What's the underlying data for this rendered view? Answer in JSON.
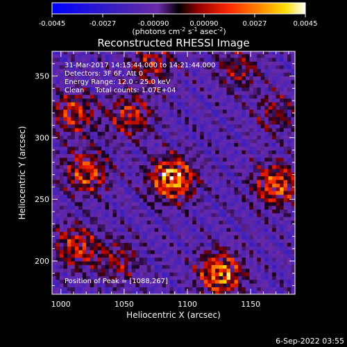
{
  "chart_data": {
    "type": "heatmap",
    "title": "Reconstructed RHESSI Image",
    "xlabel": "Heliocentric X (arcsec)",
    "ylabel": "Heliocentric Y (arcsec)",
    "xlim": [
      993,
      1185
    ],
    "ylim": [
      173,
      370
    ],
    "x_ticks": [
      1000,
      1050,
      1100,
      1150
    ],
    "y_ticks": [
      200,
      250,
      300,
      350
    ],
    "colorbar": {
      "min": -0.0045,
      "max": 0.0045,
      "ticks": [
        "-0.0045",
        "-0.0027",
        "-0.00090",
        "0.00090",
        "0.0027",
        "0.0045"
      ],
      "tick_values": [
        -0.0045,
        -0.0027,
        -0.0009,
        0.0009,
        0.0027,
        0.0045
      ],
      "label": "(photons cm",
      "label_exp1": "-2",
      "label_mid": " s",
      "label_exp2": "-1",
      "label_tail": " asec",
      "label_exp3": "-2",
      "label_end": ")"
    },
    "annotations": [
      "31-Mar-2017 14:15:44.000 to 14:21:44.000",
      "Detectors: 3F 6F, Att 0",
      "Energy Range: 12.0 - 25.0 keV",
      "Clean     Total counts: 1.07E+04"
    ],
    "peak_label": "Position of Peak = [1088,267]",
    "peak": [
      1088,
      267
    ],
    "sources": [
      {
        "x": 1088,
        "y": 267,
        "peak": 0.0045
      },
      {
        "x": 1126,
        "y": 190,
        "peak": 0.004
      },
      {
        "x": 1170,
        "y": 262,
        "peak": 0.0034
      },
      {
        "x": 1020,
        "y": 272,
        "peak": 0.003
      },
      {
        "x": 1010,
        "y": 320,
        "peak": 0.0026
      },
      {
        "x": 1055,
        "y": 318,
        "peak": 0.0025
      },
      {
        "x": 1012,
        "y": 212,
        "peak": 0.0027
      },
      {
        "x": 1072,
        "y": 360,
        "peak": 0.0022
      },
      {
        "x": 1140,
        "y": 356,
        "peak": 0.0018
      },
      {
        "x": 1170,
        "y": 320,
        "peak": 0.0016
      },
      {
        "x": 1045,
        "y": 200,
        "peak": 0.0018
      }
    ]
  },
  "footer": {
    "date": "6-Sep-2022 03:55"
  }
}
